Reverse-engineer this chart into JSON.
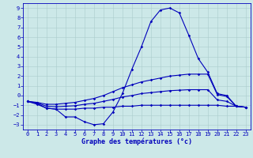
{
  "xlabel": "Graphe des températures (°c)",
  "background_color": "#cce8e8",
  "grid_color": "#aacccc",
  "line_color": "#0000bb",
  "ylim": [
    -3.5,
    9.5
  ],
  "xlim": [
    -0.5,
    23.5
  ],
  "y_ticks": [
    -3,
    -2,
    -1,
    0,
    1,
    2,
    3,
    4,
    5,
    6,
    7,
    8,
    9
  ],
  "x_ticks": [
    0,
    1,
    2,
    3,
    4,
    5,
    6,
    7,
    8,
    9,
    10,
    11,
    12,
    13,
    14,
    15,
    16,
    17,
    18,
    19,
    20,
    21,
    22,
    23
  ],
  "temp": [
    -0.6,
    -0.9,
    -1.3,
    -1.4,
    -2.2,
    -2.2,
    -2.7,
    -3.0,
    -2.9,
    -1.7,
    0.2,
    2.7,
    5.0,
    7.6,
    8.8,
    9.0,
    8.5,
    6.2,
    3.8,
    2.4,
    0.2,
    0.0,
    -1.1,
    -1.2
  ],
  "tmax": [
    -0.6,
    -0.7,
    -0.9,
    -0.9,
    -0.8,
    -0.7,
    -0.5,
    -0.3,
    0.0,
    0.4,
    0.8,
    1.1,
    1.4,
    1.6,
    1.8,
    2.0,
    2.1,
    2.2,
    2.2,
    2.2,
    0.1,
    -0.1,
    -1.1,
    -1.2
  ],
  "tmean": [
    -0.6,
    -0.75,
    -1.1,
    -1.15,
    -1.1,
    -1.05,
    -0.9,
    -0.8,
    -0.6,
    -0.4,
    -0.15,
    0.0,
    0.2,
    0.3,
    0.4,
    0.5,
    0.55,
    0.6,
    0.6,
    0.6,
    -0.45,
    -0.6,
    -1.1,
    -1.2
  ],
  "tmin": [
    -0.6,
    -0.8,
    -1.3,
    -1.4,
    -1.4,
    -1.4,
    -1.3,
    -1.3,
    -1.2,
    -1.2,
    -1.1,
    -1.1,
    -1.0,
    -1.0,
    -1.0,
    -1.0,
    -1.0,
    -1.0,
    -1.0,
    -1.0,
    -1.0,
    -1.1,
    -1.1,
    -1.2
  ],
  "tick_fontsize": 5.0,
  "xlabel_fontsize": 6.0,
  "marker_size": 1.8,
  "linewidth": 0.8
}
